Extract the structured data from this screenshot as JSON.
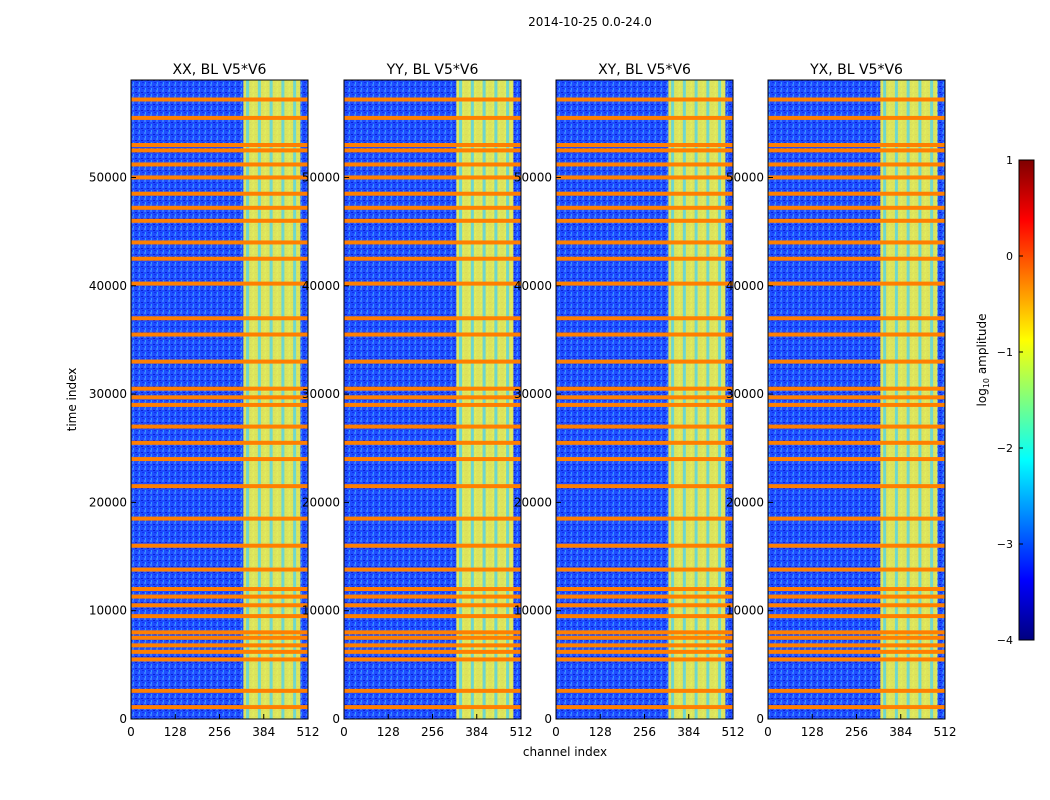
{
  "suptitle": "2014-10-25 0.0-24.0",
  "colormap": "jet",
  "chart_data": [
    {
      "type": "heatmap",
      "title": "XX, BL V5*V6",
      "xlabel": "",
      "ylabel": "time index",
      "xlim": [
        0,
        512
      ],
      "ylim": [
        0,
        59000
      ],
      "xticks": [
        "0",
        "128",
        "256",
        "384",
        "512"
      ],
      "yticks": [
        "0",
        "10000",
        "20000",
        "30000",
        "40000",
        "50000"
      ],
      "noise_band_channels": [
        325,
        490
      ],
      "rfi_rows": [
        1100,
        2600,
        5500,
        6200,
        6800,
        7500,
        8000,
        9500,
        10500,
        11300,
        12000,
        13800,
        16000,
        18500,
        21500,
        24000,
        25500,
        27000,
        29000,
        29700,
        30500,
        33000,
        35500,
        37000,
        40200,
        42500,
        44000,
        46000,
        47200,
        48500,
        50000,
        51200,
        52500,
        53000,
        55500,
        57200
      ]
    },
    {
      "type": "heatmap",
      "title": "YY, BL V5*V6",
      "xlabel": "channel index",
      "ylabel": "",
      "xlim": [
        0,
        512
      ],
      "ylim": [
        0,
        59000
      ],
      "xticks": [
        "0",
        "128",
        "256",
        "384",
        "512"
      ],
      "yticks": [
        "0",
        "10000",
        "20000",
        "30000",
        "40000",
        "50000"
      ],
      "noise_band_channels": [
        325,
        490
      ],
      "rfi_rows": [
        1100,
        2600,
        5500,
        6200,
        6800,
        7500,
        8000,
        9500,
        10500,
        11300,
        12000,
        13800,
        16000,
        18500,
        21500,
        24000,
        25500,
        27000,
        29000,
        29700,
        30500,
        33000,
        35500,
        37000,
        40200,
        42500,
        44000,
        46000,
        47200,
        48500,
        50000,
        51200,
        52500,
        53000,
        55500,
        57200
      ]
    },
    {
      "type": "heatmap",
      "title": "XY, BL V5*V6",
      "xlabel": "",
      "ylabel": "",
      "xlim": [
        0,
        512
      ],
      "ylim": [
        0,
        59000
      ],
      "xticks": [
        "0",
        "128",
        "256",
        "384",
        "512"
      ],
      "yticks": [
        "0",
        "10000",
        "20000",
        "30000",
        "40000",
        "50000"
      ],
      "noise_band_channels": [
        325,
        490
      ],
      "rfi_rows": [
        1100,
        2600,
        5500,
        6200,
        6800,
        7500,
        8000,
        9500,
        10500,
        11300,
        12000,
        13800,
        16000,
        18500,
        21500,
        24000,
        25500,
        27000,
        29000,
        29700,
        30500,
        33000,
        35500,
        37000,
        40200,
        42500,
        44000,
        46000,
        47200,
        48500,
        50000,
        51200,
        52500,
        53000,
        55500,
        57200
      ]
    },
    {
      "type": "heatmap",
      "title": "YX, BL V5*V6",
      "xlabel": "",
      "ylabel": "",
      "xlim": [
        0,
        512
      ],
      "ylim": [
        0,
        59000
      ],
      "xticks": [
        "0",
        "128",
        "256",
        "384",
        "512"
      ],
      "yticks": [
        "0",
        "10000",
        "20000",
        "30000",
        "40000",
        "50000"
      ],
      "noise_band_channels": [
        325,
        490
      ],
      "rfi_rows": [
        1100,
        2600,
        5500,
        6200,
        6800,
        7500,
        8000,
        9500,
        10500,
        11300,
        12000,
        13800,
        16000,
        18500,
        21500,
        24000,
        25500,
        27000,
        29000,
        29700,
        30500,
        33000,
        35500,
        37000,
        40200,
        42500,
        44000,
        46000,
        47200,
        48500,
        50000,
        51200,
        52500,
        53000,
        55500,
        57200
      ]
    }
  ],
  "colorbar": {
    "label": "log10 amplitude",
    "label_main": "log",
    "label_sub": "10",
    "label_rest": " amplitude",
    "range": [
      -4,
      1
    ],
    "ticks": [
      "1",
      "0",
      "−1",
      "−2",
      "−3",
      "−4"
    ],
    "tick_values": [
      1,
      0,
      -1,
      -2,
      -3,
      -4
    ],
    "colors": [
      "#00007f",
      "#0000ff",
      "#007fff",
      "#00ffff",
      "#7fff7f",
      "#ffff00",
      "#ff7f00",
      "#ff0000",
      "#7f0000"
    ],
    "band_color": "#ffff40",
    "rfi_color": "#ff7f00",
    "background_color": "#2a5cff"
  }
}
